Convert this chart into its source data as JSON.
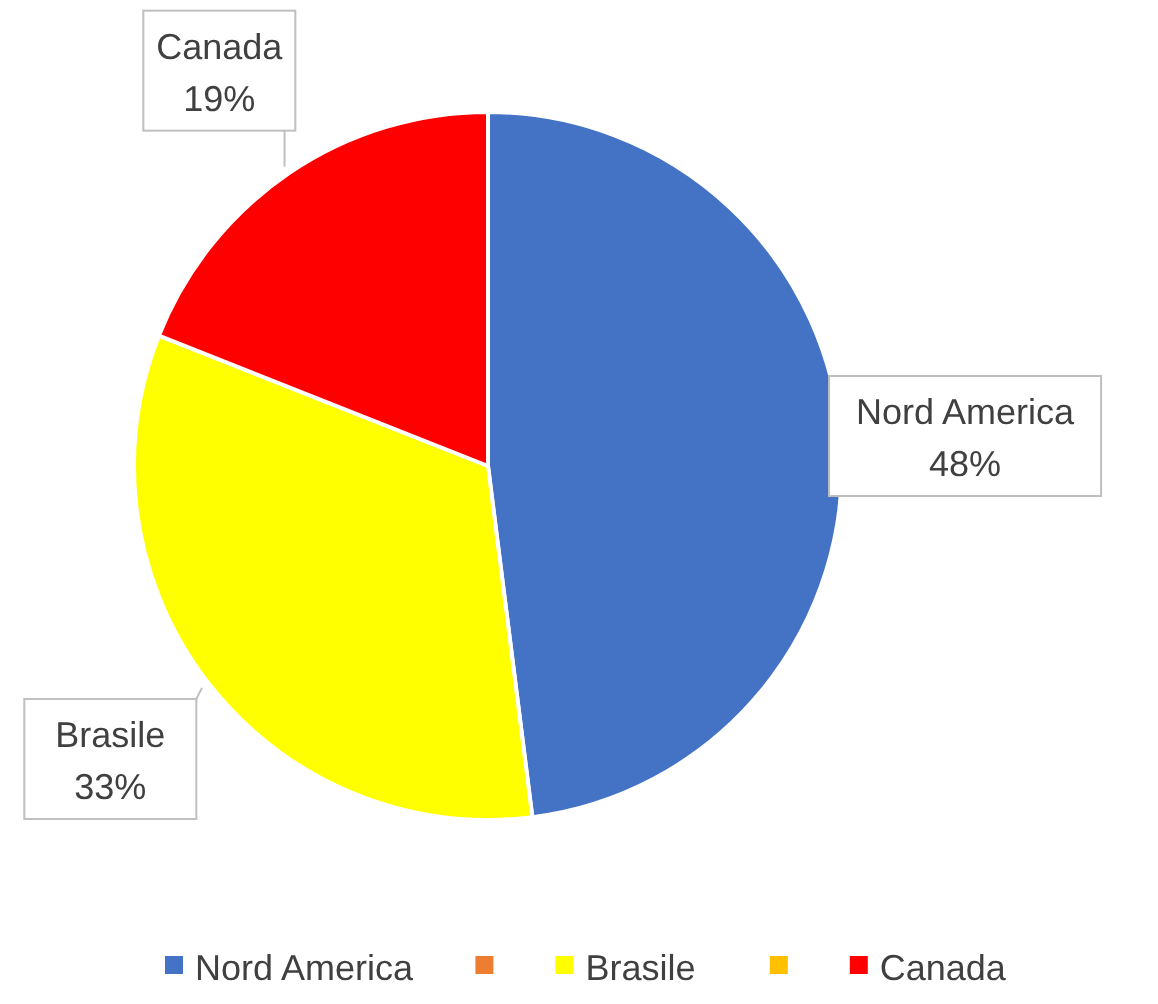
{
  "chart_data": {
    "type": "pie",
    "categories": [
      "Nord America",
      null,
      "Brasile",
      null,
      "Canada"
    ],
    "values": [
      48,
      0,
      33,
      0,
      19
    ],
    "colors": [
      "#4472c4",
      "#ed7d31",
      "#ffff00",
      "#ffc000",
      "#ff0000"
    ],
    "value_labels": [
      "48%",
      null,
      "33%",
      null,
      "19%"
    ],
    "legend": "bottom"
  }
}
